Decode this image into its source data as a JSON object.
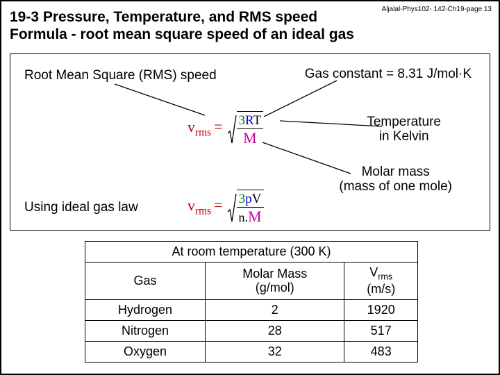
{
  "page_ref": "Aljalal-Phys102- 142-Ch19-page 13",
  "title_line1": "19-3 Pressure, Temperature, and RMS speed",
  "title_line2": "Formula - root mean square speed of an ideal gas",
  "box": {
    "rms_label": "Root Mean Square (RMS) speed",
    "gas_constant": "Gas constant = 8.31 J/mol·K",
    "temperature": "Temperature\nin Kelvin",
    "molar_mass": "Molar mass\n(mass of one mole)",
    "ideal_law": "Using ideal gas law"
  },
  "formula1": {
    "lhs": "v",
    "lhs_sub": "rms",
    "eq": "=",
    "num_a": "3",
    "num_b": "R",
    "num_c": "T",
    "den": "M"
  },
  "formula2": {
    "lhs": "v",
    "lhs_sub": "rms",
    "eq": "=",
    "num_a": "3",
    "num_b": "p",
    "num_c": "V",
    "den_a": "n.",
    "den_b": "M"
  },
  "table": {
    "title": "At room temperature (300 K)",
    "columns": {
      "gas": "Gas",
      "molar_mass": "Molar Mass\n(g/mol)",
      "vrms_label": "V",
      "vrms_sub": "rms",
      "vrms_unit": "(m/s)"
    },
    "rows": [
      {
        "gas": "Hydrogen",
        "mm": "2",
        "vrms": "1920"
      },
      {
        "gas": "Nitrogen",
        "mm": "28",
        "vrms": "517"
      },
      {
        "gas": "Oxygen",
        "mm": "32",
        "vrms": "483"
      }
    ]
  }
}
